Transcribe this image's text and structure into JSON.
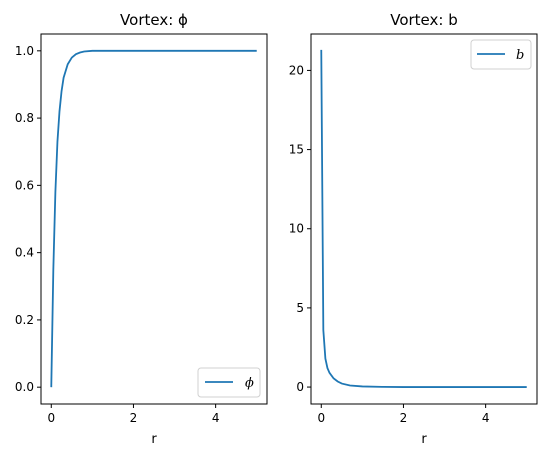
{
  "chart_data": [
    {
      "type": "line",
      "title": "Vortex: ϕ",
      "xlabel": "r",
      "ylabel": "",
      "xlim": [
        -0.25,
        5.25
      ],
      "ylim": [
        -0.05,
        1.05
      ],
      "xticks": [
        0,
        2,
        4
      ],
      "yticks": [
        0.0,
        0.2,
        0.4,
        0.6,
        0.8,
        1.0
      ],
      "ytick_labels": [
        "0.0",
        "0.2",
        "0.4",
        "0.6",
        "0.8",
        "1.0"
      ],
      "legend": "lower-right",
      "series": [
        {
          "name": "ϕ",
          "color": "#1f77b4",
          "x": [
            0,
            0.05,
            0.1,
            0.15,
            0.2,
            0.25,
            0.3,
            0.4,
            0.5,
            0.6,
            0.7,
            0.8,
            1.0,
            1.2,
            1.5,
            2.0,
            3.0,
            4.0,
            5.0
          ],
          "y": [
            0,
            0.35,
            0.58,
            0.73,
            0.82,
            0.88,
            0.92,
            0.96,
            0.98,
            0.99,
            0.995,
            0.998,
            1.0,
            1.0,
            1.0,
            1.0,
            1.0,
            1.0,
            1.0
          ]
        }
      ]
    },
    {
      "type": "line",
      "title": "Vortex: b",
      "xlabel": "r",
      "ylabel": "",
      "xlim": [
        -0.25,
        5.25
      ],
      "ylim": [
        -1.07,
        22.3
      ],
      "xticks": [
        0,
        2,
        4
      ],
      "yticks": [
        0,
        5,
        10,
        15,
        20
      ],
      "ytick_labels": [
        "0",
        "5",
        "10",
        "15",
        "20"
      ],
      "legend": "top-right",
      "series": [
        {
          "name": "b",
          "color": "#1f77b4",
          "x": [
            0.0,
            0.05,
            0.1,
            0.15,
            0.2,
            0.3,
            0.4,
            0.5,
            0.7,
            1.0,
            1.5,
            2.0,
            3.0,
            4.0,
            5.0
          ],
          "y": [
            21.3,
            3.6,
            1.8,
            1.2,
            0.9,
            0.55,
            0.35,
            0.22,
            0.1,
            0.04,
            0.01,
            0.0,
            0.0,
            0.0,
            0.0
          ]
        }
      ]
    }
  ]
}
